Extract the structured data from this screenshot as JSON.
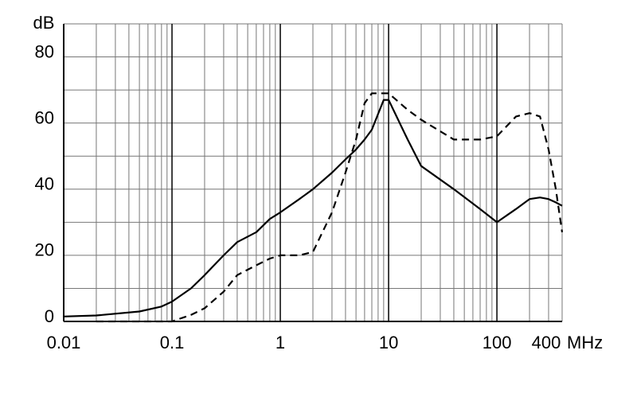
{
  "chart_data": {
    "type": "line",
    "y_label": "dB",
    "x_label": "MHz",
    "xscale": "log",
    "xlim": [
      0.01,
      400
    ],
    "xticks": [
      0.01,
      0.1,
      1,
      10,
      100,
      400
    ],
    "ylim": [
      0,
      90
    ],
    "yticks": [
      0,
      20,
      40,
      60,
      80
    ],
    "ygrid": [
      10,
      30,
      50,
      70,
      90
    ],
    "grid": true,
    "x": [
      0.01,
      0.02,
      0.05,
      0.08,
      0.1,
      0.15,
      0.2,
      0.3,
      0.4,
      0.6,
      0.8,
      1,
      1.5,
      2,
      3,
      4,
      5,
      6,
      7,
      9,
      10,
      15,
      20,
      40,
      70,
      100,
      150,
      200,
      250,
      300,
      350,
      400
    ],
    "series": [
      {
        "color": "#000000",
        "dash": "none",
        "values": [
          1.5,
          1.8,
          3,
          4.5,
          6,
          10,
          14,
          20,
          24,
          27,
          31,
          33,
          37,
          40,
          45,
          49,
          52,
          55,
          58,
          67,
          67,
          55,
          47,
          40,
          34,
          30,
          34,
          37,
          37.5,
          37,
          36,
          35
        ]
      },
      {
        "color": "#000000",
        "dash": "9,6",
        "values": [
          null,
          0,
          0,
          0,
          0,
          2,
          4,
          9,
          14,
          17,
          19,
          20,
          20,
          21,
          33,
          45,
          55,
          66,
          69,
          69,
          69,
          64,
          61,
          55,
          55,
          56,
          62,
          63,
          62,
          52,
          40,
          27
        ]
      }
    ]
  }
}
